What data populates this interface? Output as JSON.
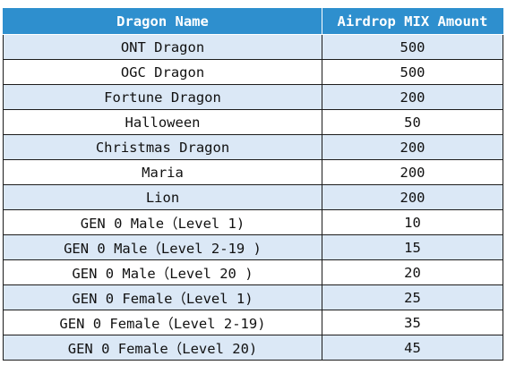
{
  "table": {
    "headers": [
      "Dragon Name",
      "Airdrop MIX Amount"
    ],
    "rows": [
      {
        "name": "ONT Dragon",
        "amount": "500"
      },
      {
        "name": "OGC Dragon",
        "amount": "500"
      },
      {
        "name": "Fortune Dragon",
        "amount": "200"
      },
      {
        "name": "Halloween",
        "amount": "50"
      },
      {
        "name": "Christmas Dragon",
        "amount": "200"
      },
      {
        "name": "Maria",
        "amount": "200"
      },
      {
        "name": "Lion",
        "amount": "200"
      },
      {
        "name": "GEN 0 Male（Level 1)",
        "amount": "10"
      },
      {
        "name": "GEN 0 Male（Level 2-19 )",
        "amount": "15"
      },
      {
        "name": "GEN 0 Male（Level 20 )",
        "amount": "20"
      },
      {
        "name": "GEN 0 Female（Level 1)",
        "amount": "25"
      },
      {
        "name": "GEN 0 Female（Level 2-19)",
        "amount": "35"
      },
      {
        "name": "GEN 0 Female（Level 20)",
        "amount": "45"
      }
    ]
  },
  "colors": {
    "header_background": "#2e8fce",
    "header_text": "#ffffff",
    "shaded_row": "#dbe8f6",
    "plain_row": "#ffffff",
    "border": "#1c1c1c"
  }
}
